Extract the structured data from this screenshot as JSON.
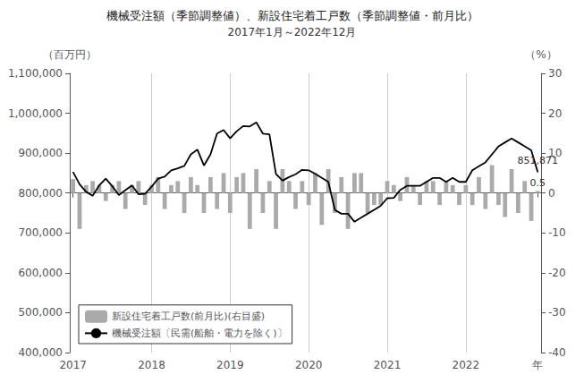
{
  "chart_data": {
    "type": "combo",
    "title": "機械受注額（季節調整値）、新設住宅着工戸数（季節調整値・前月比）",
    "subtitle": "2017年1月～2022年12月",
    "ylabel": "（百万円）",
    "y2label": "（%）",
    "categories": [
      "2017",
      null,
      null,
      null,
      null,
      null,
      null,
      null,
      null,
      null,
      null,
      null,
      "2018",
      null,
      null,
      null,
      null,
      null,
      null,
      null,
      null,
      null,
      null,
      null,
      "2019",
      null,
      null,
      null,
      null,
      null,
      null,
      null,
      null,
      null,
      null,
      null,
      "2020",
      null,
      null,
      null,
      null,
      null,
      null,
      null,
      null,
      null,
      null,
      null,
      "2021",
      null,
      null,
      null,
      null,
      null,
      null,
      null,
      null,
      null,
      null,
      null,
      "2022",
      null,
      null,
      null,
      null,
      null,
      null,
      null,
      null,
      null,
      null,
      "年"
    ],
    "ylim": [
      400000,
      1100000
    ],
    "yticks": [
      {
        "value": 400000,
        "label": "400,000"
      },
      {
        "value": 500000,
        "label": "500,000"
      },
      {
        "value": 600000,
        "label": "600,000"
      },
      {
        "value": 700000,
        "label": "700,000"
      },
      {
        "value": 800000,
        "label": "800,000"
      },
      {
        "value": 900000,
        "label": "900,000"
      },
      {
        "value": 1000000,
        "label": "1,000,000"
      },
      {
        "value": 1100000,
        "label": "1,100,000"
      }
    ],
    "y2lim": [
      -40,
      30
    ],
    "y2ticks": [
      -40,
      -30,
      -20,
      -10,
      0,
      10,
      20,
      30
    ],
    "grid": true,
    "legend": "lower left",
    "series": [
      {
        "name": "新設住宅着工戸数(前月比)(右目盛)",
        "type": "bar",
        "axis": "y2",
        "color": "#aaaaaa",
        "values": [
          3.5,
          -9,
          2,
          3,
          2,
          -2,
          2,
          3,
          -4,
          2,
          3,
          -3,
          2,
          4,
          -4,
          2,
          3,
          -5,
          4,
          2,
          -5,
          4,
          -4,
          5,
          -5,
          4,
          5,
          -9,
          6,
          -5,
          3,
          -9,
          6,
          3,
          -4,
          3,
          -3,
          5,
          -8,
          6,
          -5,
          4,
          -9,
          5,
          5,
          -5,
          -3,
          -3,
          3,
          2,
          -2,
          4,
          2,
          -3,
          3,
          3,
          -3,
          3,
          2,
          -3,
          2,
          -3,
          4,
          -4,
          7,
          -3,
          -6,
          6,
          -5,
          3,
          -7,
          0.5
        ],
        "value_labels": [
          null,
          null,
          null,
          null,
          null,
          null,
          null,
          null,
          null,
          null,
          null,
          null,
          null,
          null,
          null,
          null,
          null,
          null,
          null,
          null,
          null,
          null,
          null,
          null,
          null,
          null,
          null,
          null,
          null,
          null,
          null,
          null,
          null,
          null,
          null,
          null,
          null,
          null,
          null,
          null,
          null,
          null,
          null,
          null,
          null,
          null,
          null,
          null,
          null,
          null,
          null,
          null,
          null,
          null,
          null,
          null,
          null,
          null,
          null,
          null,
          null,
          null,
          null,
          null,
          null,
          null,
          null,
          null,
          null,
          null,
          null,
          "0.5"
        ]
      },
      {
        "name": "機械受注額〔民需(船舶・電力を除く)〕",
        "type": "line",
        "color": "#000000",
        "values": [
          853000,
          822000,
          803000,
          793000,
          819000,
          836000,
          817000,
          795000,
          807000,
          819000,
          797000,
          798000,
          816000,
          836000,
          841000,
          857000,
          862000,
          868000,
          897000,
          909000,
          869000,
          897000,
          949000,
          958000,
          937000,
          955000,
          968000,
          967000,
          977000,
          949000,
          947000,
          848000,
          831000,
          840000,
          847000,
          858000,
          857000,
          848000,
          838000,
          828000,
          758000,
          748000,
          748000,
          728000,
          738000,
          748000,
          758000,
          768000,
          787000,
          788000,
          808000,
          818000,
          818000,
          818000,
          828000,
          838000,
          838000,
          828000,
          838000,
          828000,
          828000,
          857000,
          867000,
          877000,
          897000,
          917000,
          927000,
          937000,
          927000,
          917000,
          907000,
          851871
        ],
        "value_labels": [
          null,
          null,
          null,
          null,
          null,
          null,
          null,
          null,
          null,
          null,
          null,
          null,
          null,
          null,
          null,
          null,
          null,
          null,
          null,
          null,
          null,
          null,
          null,
          null,
          null,
          null,
          null,
          null,
          null,
          null,
          null,
          null,
          null,
          null,
          null,
          null,
          null,
          null,
          null,
          null,
          null,
          null,
          null,
          null,
          null,
          null,
          null,
          null,
          null,
          null,
          null,
          null,
          null,
          null,
          null,
          null,
          null,
          null,
          null,
          null,
          null,
          null,
          null,
          null,
          null,
          null,
          null,
          null,
          null,
          null,
          null,
          "851,871"
        ]
      }
    ]
  }
}
